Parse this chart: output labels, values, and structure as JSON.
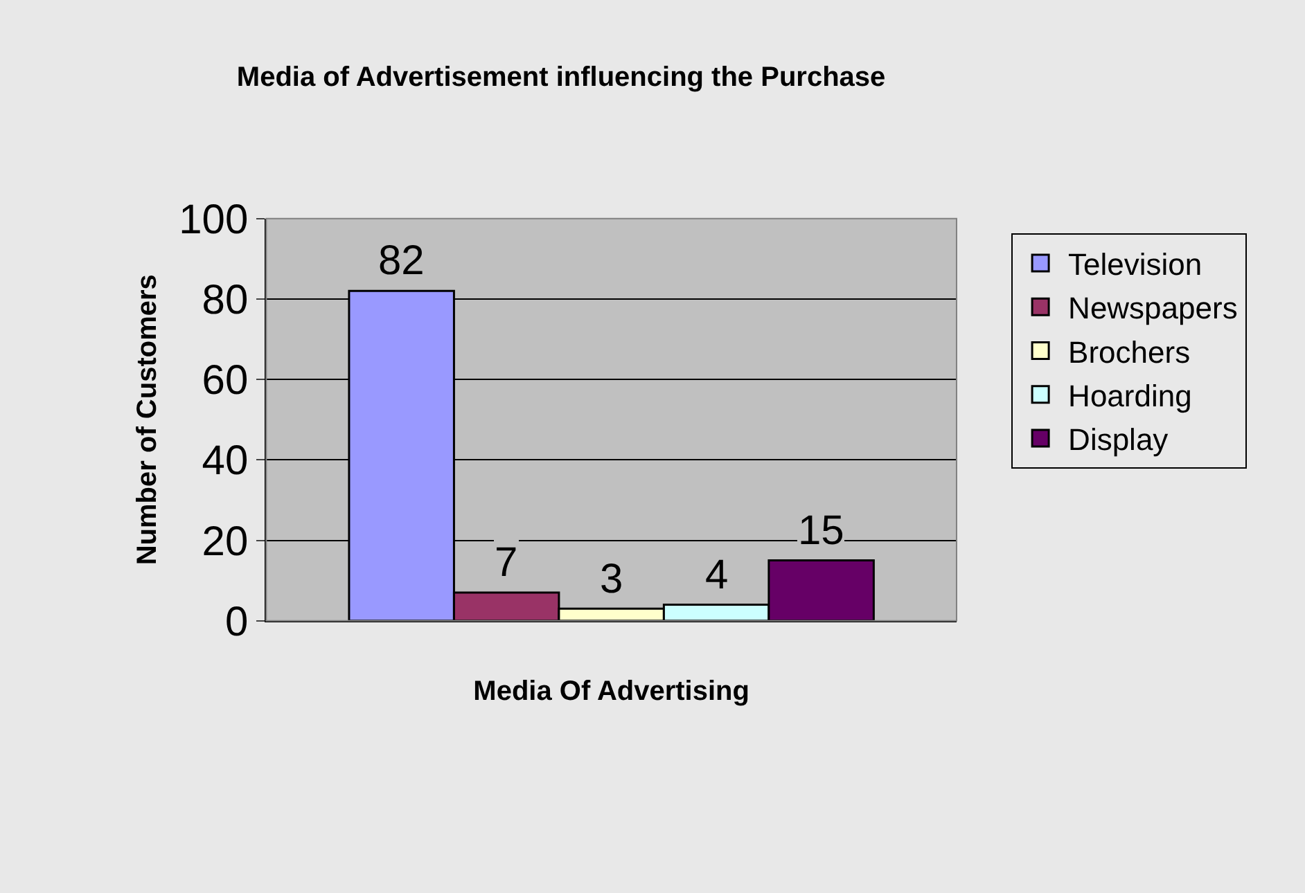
{
  "chart_data": {
    "type": "bar",
    "title": "Media of Advertisement influencing the Purchase",
    "xlabel": "Media Of Advertising",
    "ylabel": "Number of Customers",
    "categories": [
      null
    ],
    "series": [
      {
        "name": "Television",
        "color": "#9999ff",
        "values": [
          82
        ]
      },
      {
        "name": "Newspapers",
        "color": "#993366",
        "values": [
          7
        ]
      },
      {
        "name": "Brochers",
        "color": "#ffffcc",
        "values": [
          3
        ]
      },
      {
        "name": "Hoarding",
        "color": "#ccffff",
        "values": [
          4
        ]
      },
      {
        "name": "Display",
        "color": "#660066",
        "values": [
          15
        ]
      }
    ],
    "ylim": [
      0,
      100
    ],
    "yticks": [
      0,
      20,
      40,
      60,
      80,
      100
    ],
    "grid": "y",
    "legend": "right",
    "data_labels": true
  }
}
